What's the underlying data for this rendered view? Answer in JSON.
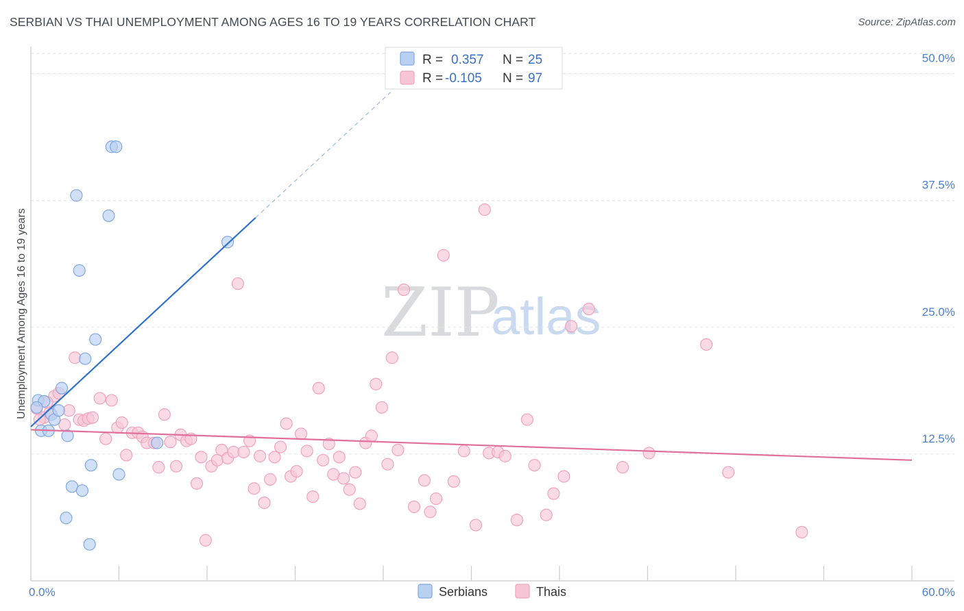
{
  "title": "SERBIAN VS THAI UNEMPLOYMENT AMONG AGES 16 TO 19 YEARS CORRELATION CHART",
  "source": "Source: ZipAtlas.com",
  "watermark": {
    "zip": "ZIP",
    "atlas": "atlas"
  },
  "legend": {
    "rows": [
      {
        "r_label": "R =",
        "r_value": "0.357",
        "n_label": "N =",
        "n_value": "25"
      },
      {
        "r_label": "R =",
        "r_value": "-0.105",
        "n_label": "N =",
        "n_value": "97"
      }
    ]
  },
  "bottom_legend": [
    "Serbians",
    "Thais"
  ],
  "chart_data": {
    "type": "scatter",
    "xlabel": "",
    "ylabel": "Unemployment Among Ages 16 to 19 years",
    "xlim": [
      0,
      60
    ],
    "ylim": [
      0,
      52
    ],
    "x_tick_labels": [
      "0.0%",
      "60.0%"
    ],
    "y_ticks": [
      12.5,
      25.0,
      37.5,
      50.0
    ],
    "y_tick_labels": [
      "12.5%",
      "25.0%",
      "37.5%",
      "50.0%"
    ],
    "grid": true,
    "legend_position": "top-center",
    "series": [
      {
        "name": "Serbians",
        "color": "#7fa8e0",
        "fill": "#b9d0f1",
        "line_color": "#2f72cc",
        "trend": {
          "x0": 0.0,
          "y0": 15.2,
          "x1": 15.3,
          "y1": 35.8,
          "dash_to_x": 24.5
        },
        "points": [
          [
            0.5,
            17.8
          ],
          [
            0.7,
            14.8
          ],
          [
            0.9,
            17.7
          ],
          [
            1.2,
            14.8
          ],
          [
            1.4,
            16.4
          ],
          [
            1.6,
            15.9
          ],
          [
            1.9,
            16.8
          ],
          [
            2.1,
            19.0
          ],
          [
            2.5,
            14.3
          ],
          [
            2.4,
            6.2
          ],
          [
            2.8,
            9.3
          ],
          [
            3.1,
            38.0
          ],
          [
            3.3,
            30.6
          ],
          [
            3.5,
            8.9
          ],
          [
            3.7,
            21.9
          ],
          [
            4.0,
            3.6
          ],
          [
            4.1,
            11.4
          ],
          [
            4.4,
            23.8
          ],
          [
            5.3,
            36.0
          ],
          [
            5.5,
            42.8
          ],
          [
            5.8,
            42.8
          ],
          [
            6.0,
            10.5
          ],
          [
            8.6,
            13.6
          ],
          [
            13.4,
            33.4
          ],
          [
            0.4,
            17.1
          ]
        ]
      },
      {
        "name": "Thais",
        "color": "#f0a3bc",
        "fill": "#f7c6d6",
        "line_color": "#e0709a",
        "trend": {
          "x0": 0.0,
          "y0": 14.9,
          "x1": 60.0,
          "y1": 11.9
        },
        "points": [
          [
            0.4,
            17.0
          ],
          [
            0.9,
            16.1
          ],
          [
            1.3,
            16.6
          ],
          [
            1.6,
            18.2
          ],
          [
            1.9,
            18.5
          ],
          [
            2.3,
            15.4
          ],
          [
            2.6,
            16.8
          ],
          [
            3.0,
            22.0
          ],
          [
            3.3,
            15.9
          ],
          [
            3.6,
            15.8
          ],
          [
            3.9,
            16.0
          ],
          [
            4.2,
            16.1
          ],
          [
            4.7,
            18.0
          ],
          [
            5.1,
            14.0
          ],
          [
            5.5,
            17.8
          ],
          [
            5.9,
            15.1
          ],
          [
            6.2,
            15.6
          ],
          [
            6.5,
            12.4
          ],
          [
            6.9,
            14.6
          ],
          [
            7.3,
            14.6
          ],
          [
            7.6,
            14.2
          ],
          [
            7.9,
            13.6
          ],
          [
            8.4,
            13.6
          ],
          [
            8.7,
            11.2
          ],
          [
            9.1,
            16.4
          ],
          [
            9.5,
            13.7
          ],
          [
            9.9,
            11.3
          ],
          [
            10.2,
            14.4
          ],
          [
            10.6,
            13.8
          ],
          [
            10.9,
            14.0
          ],
          [
            11.3,
            9.6
          ],
          [
            11.6,
            12.2
          ],
          [
            11.9,
            4.0
          ],
          [
            12.3,
            11.3
          ],
          [
            12.7,
            11.9
          ],
          [
            13.0,
            12.9
          ],
          [
            13.4,
            12.1
          ],
          [
            13.8,
            12.7
          ],
          [
            14.1,
            29.3
          ],
          [
            14.5,
            12.7
          ],
          [
            14.9,
            13.8
          ],
          [
            15.2,
            9.1
          ],
          [
            15.6,
            12.3
          ],
          [
            15.9,
            7.7
          ],
          [
            16.3,
            10.0
          ],
          [
            16.6,
            12.2
          ],
          [
            17.0,
            13.2
          ],
          [
            17.4,
            15.5
          ],
          [
            17.7,
            10.3
          ],
          [
            18.1,
            10.8
          ],
          [
            18.4,
            14.5
          ],
          [
            18.8,
            12.8
          ],
          [
            19.2,
            8.3
          ],
          [
            19.6,
            19.0
          ],
          [
            19.9,
            11.9
          ],
          [
            20.3,
            13.5
          ],
          [
            20.6,
            10.5
          ],
          [
            21.0,
            12.2
          ],
          [
            21.3,
            10.1
          ],
          [
            21.7,
            9.0
          ],
          [
            22.1,
            10.7
          ],
          [
            22.4,
            7.6
          ],
          [
            22.8,
            13.6
          ],
          [
            23.2,
            14.3
          ],
          [
            23.5,
            19.4
          ],
          [
            23.9,
            17.1
          ],
          [
            24.3,
            11.5
          ],
          [
            24.6,
            22.0
          ],
          [
            25.0,
            12.9
          ],
          [
            25.4,
            28.7
          ],
          [
            26.1,
            7.3
          ],
          [
            26.8,
            9.9
          ],
          [
            27.2,
            6.8
          ],
          [
            27.6,
            8.1
          ],
          [
            28.1,
            32.1
          ],
          [
            28.8,
            9.8
          ],
          [
            29.5,
            12.8
          ],
          [
            30.3,
            5.5
          ],
          [
            30.9,
            36.6
          ],
          [
            31.2,
            12.6
          ],
          [
            31.8,
            12.7
          ],
          [
            32.3,
            12.3
          ],
          [
            33.1,
            6.0
          ],
          [
            33.8,
            15.9
          ],
          [
            34.3,
            11.4
          ],
          [
            35.1,
            6.5
          ],
          [
            35.6,
            8.6
          ],
          [
            36.3,
            10.3
          ],
          [
            36.8,
            25.1
          ],
          [
            38.0,
            26.8
          ],
          [
            40.3,
            11.2
          ],
          [
            42.1,
            12.6
          ],
          [
            46.0,
            23.3
          ],
          [
            47.5,
            10.7
          ],
          [
            52.5,
            4.8
          ],
          [
            0.6,
            15.9
          ],
          [
            1.1,
            17.6
          ]
        ]
      }
    ]
  }
}
